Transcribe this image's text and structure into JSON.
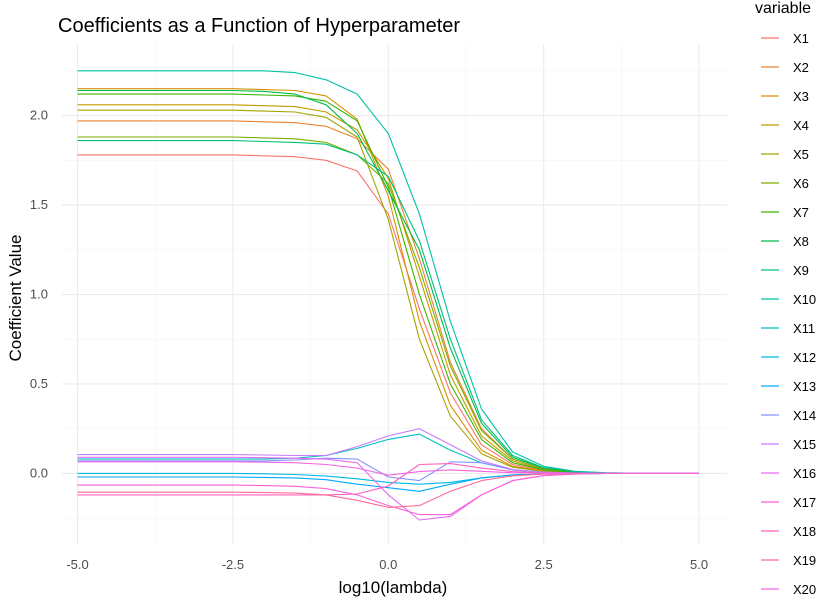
{
  "chart_data": {
    "type": "line",
    "title": "Coefficients as a Function of Hyperparameter",
    "xlabel": "log10(lambda)",
    "ylabel": "Coefficient Value",
    "xlim": [
      -5.25,
      5.45
    ],
    "ylim": [
      -0.4,
      2.4
    ],
    "x_ticks": [
      -5.0,
      -2.5,
      0.0,
      2.5,
      5.0
    ],
    "x_tick_labels": [
      "-5.0",
      "-2.5",
      "0.0",
      "2.5",
      "5.0"
    ],
    "y_ticks": [
      0.0,
      0.5,
      1.0,
      1.5,
      2.0
    ],
    "y_tick_labels": [
      "0.0",
      "0.5",
      "1.0",
      "1.5",
      "2.0"
    ],
    "grid": true,
    "legend_title": "variable",
    "legend_position": "right",
    "x": [
      -5,
      -4.5,
      -4,
      -3.5,
      -3,
      -2.5,
      -2,
      -1.5,
      -1,
      -0.5,
      0,
      0.5,
      1,
      1.5,
      2,
      2.5,
      3,
      3.5,
      4,
      4.5,
      5
    ],
    "series": [
      {
        "name": "X1",
        "color": "#F8766D",
        "values": [
          1.78,
          1.78,
          1.78,
          1.78,
          1.78,
          1.78,
          1.775,
          1.77,
          1.75,
          1.69,
          1.45,
          0.92,
          0.45,
          0.16,
          0.05,
          0.015,
          0.005,
          0.002,
          0.001,
          0,
          0
        ]
      },
      {
        "name": "X2",
        "color": "#EA8331",
        "values": [
          1.97,
          1.97,
          1.97,
          1.97,
          1.97,
          1.97,
          1.965,
          1.96,
          1.94,
          1.87,
          1.7,
          1.2,
          0.62,
          0.25,
          0.08,
          0.025,
          0.008,
          0.003,
          0.001,
          0,
          0
        ]
      },
      {
        "name": "X3",
        "color": "#D89000",
        "values": [
          2.15,
          2.15,
          2.15,
          2.15,
          2.15,
          2.15,
          2.145,
          2.14,
          2.11,
          1.98,
          1.55,
          0.85,
          0.38,
          0.13,
          0.04,
          0.013,
          0.004,
          0.001,
          0,
          0,
          0
        ]
      },
      {
        "name": "X4",
        "color": "#C09B00",
        "values": [
          2.06,
          2.06,
          2.06,
          2.06,
          2.06,
          2.06,
          2.055,
          2.05,
          2.02,
          1.92,
          1.65,
          1.1,
          0.55,
          0.21,
          0.07,
          0.02,
          0.007,
          0.002,
          0,
          0,
          0
        ]
      },
      {
        "name": "X5",
        "color": "#A3A500",
        "values": [
          2.03,
          2.03,
          2.03,
          2.03,
          2.03,
          2.03,
          2.025,
          2.02,
          1.99,
          1.88,
          1.42,
          0.75,
          0.32,
          0.11,
          0.035,
          0.011,
          0.003,
          0.001,
          0,
          0,
          0
        ]
      },
      {
        "name": "X6",
        "color": "#7CAE00",
        "values": [
          1.88,
          1.88,
          1.88,
          1.88,
          1.88,
          1.88,
          1.875,
          1.87,
          1.85,
          1.78,
          1.62,
          1.15,
          0.6,
          0.24,
          0.08,
          0.025,
          0.008,
          0.002,
          0,
          0,
          0
        ]
      },
      {
        "name": "X7",
        "color": "#39B600",
        "values": [
          2.12,
          2.12,
          2.12,
          2.12,
          2.12,
          2.12,
          2.115,
          2.11,
          2.08,
          1.97,
          1.6,
          1.0,
          0.5,
          0.19,
          0.06,
          0.019,
          0.006,
          0.002,
          0,
          0,
          0
        ]
      },
      {
        "name": "X8",
        "color": "#00BB4E",
        "values": [
          2.14,
          2.14,
          2.14,
          2.14,
          2.14,
          2.14,
          2.135,
          2.12,
          2.06,
          1.9,
          1.58,
          1.25,
          0.7,
          0.28,
          0.09,
          0.03,
          0.01,
          0.003,
          0.001,
          0,
          0
        ]
      },
      {
        "name": "X9",
        "color": "#00BF7D",
        "values": [
          1.86,
          1.86,
          1.86,
          1.86,
          1.86,
          1.86,
          1.855,
          1.85,
          1.84,
          1.78,
          1.66,
          1.3,
          0.75,
          0.3,
          0.1,
          0.032,
          0.01,
          0.003,
          0.001,
          0,
          0
        ]
      },
      {
        "name": "X10",
        "color": "#00C1A3",
        "values": [
          2.25,
          2.25,
          2.25,
          2.25,
          2.25,
          2.25,
          2.25,
          2.24,
          2.2,
          2.12,
          1.9,
          1.45,
          0.85,
          0.36,
          0.12,
          0.04,
          0.012,
          0.004,
          0.001,
          0,
          0
        ]
      },
      {
        "name": "X11",
        "color": "#00BFC4",
        "values": [
          0.08,
          0.08,
          0.08,
          0.08,
          0.08,
          0.08,
          0.08,
          0.085,
          0.1,
          0.14,
          0.19,
          0.22,
          0.13,
          0.06,
          0.02,
          0.007,
          0.002,
          0.001,
          0,
          0,
          0
        ]
      },
      {
        "name": "X12",
        "color": "#00B8E7",
        "values": [
          0.0,
          0.0,
          0.0,
          0.0,
          0.0,
          0.0,
          -0.002,
          -0.006,
          -0.015,
          -0.03,
          -0.05,
          -0.06,
          -0.05,
          -0.025,
          -0.008,
          -0.003,
          -0.001,
          0,
          0,
          0,
          0
        ]
      },
      {
        "name": "X13",
        "color": "#00A9FF",
        "values": [
          -0.02,
          -0.02,
          -0.02,
          -0.02,
          -0.02,
          -0.02,
          -0.022,
          -0.025,
          -0.035,
          -0.06,
          -0.08,
          -0.1,
          -0.06,
          -0.025,
          -0.008,
          -0.003,
          -0.001,
          0,
          0,
          0,
          0
        ]
      },
      {
        "name": "X14",
        "color": "#8494FF",
        "values": [
          0.07,
          0.07,
          0.07,
          0.07,
          0.07,
          0.07,
          0.07,
          0.075,
          0.085,
          0.08,
          -0.02,
          -0.04,
          0.065,
          0.06,
          0.02,
          0.007,
          0.002,
          0,
          0,
          0,
          0
        ]
      },
      {
        "name": "X15",
        "color": "#C77CFF",
        "values": [
          0.105,
          0.105,
          0.105,
          0.105,
          0.105,
          0.105,
          0.103,
          0.1,
          0.1,
          0.15,
          0.21,
          0.25,
          0.16,
          0.07,
          0.022,
          0.007,
          0.002,
          0,
          0,
          0,
          0
        ]
      },
      {
        "name": "X16",
        "color": "#E76BF3",
        "values": [
          0.09,
          0.09,
          0.09,
          0.09,
          0.09,
          0.09,
          0.088,
          0.085,
          0.08,
          0.06,
          -0.12,
          -0.26,
          -0.24,
          -0.12,
          -0.04,
          -0.012,
          -0.004,
          0,
          0,
          0,
          0
        ]
      },
      {
        "name": "X17",
        "color": "#FA62DB",
        "values": [
          -0.065,
          -0.065,
          -0.065,
          -0.065,
          -0.065,
          -0.065,
          -0.068,
          -0.072,
          -0.085,
          -0.12,
          -0.18,
          -0.23,
          -0.23,
          -0.12,
          -0.04,
          -0.012,
          -0.004,
          0,
          0,
          0,
          0
        ]
      },
      {
        "name": "X18",
        "color": "#FF62BC",
        "values": [
          -0.12,
          -0.12,
          -0.12,
          -0.12,
          -0.12,
          -0.12,
          -0.12,
          -0.12,
          -0.12,
          -0.115,
          -0.07,
          0.05,
          0.055,
          0.03,
          0.01,
          0.003,
          0.001,
          0,
          0,
          0,
          0
        ]
      },
      {
        "name": "X19",
        "color": "#FF6C91",
        "values": [
          -0.105,
          -0.105,
          -0.105,
          -0.105,
          -0.105,
          -0.105,
          -0.107,
          -0.11,
          -0.12,
          -0.15,
          -0.19,
          -0.18,
          -0.1,
          -0.04,
          -0.013,
          -0.004,
          -0.001,
          0,
          0,
          0,
          0
        ]
      },
      {
        "name": "X20",
        "color": "#F564E3",
        "values": [
          0.065,
          0.065,
          0.065,
          0.065,
          0.065,
          0.065,
          0.063,
          0.06,
          0.05,
          0.03,
          -0.01,
          0.01,
          0.02,
          0.012,
          0.004,
          0.001,
          0,
          0,
          0,
          0,
          0
        ]
      }
    ]
  }
}
